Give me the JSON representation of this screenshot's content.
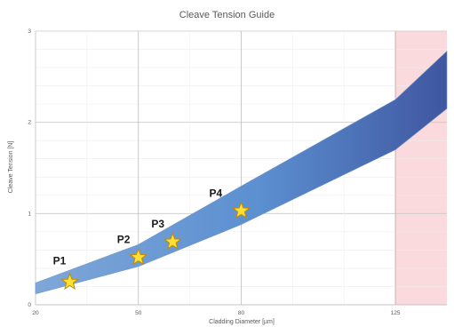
{
  "chart_data": {
    "type": "area",
    "title": "Cleave Tension Guide",
    "xlabel": "Cladding Diameter [µm]",
    "ylabel": "Cleave Tension [N]",
    "x_tick_labels": [
      "20",
      "50",
      "80",
      "125"
    ],
    "x_tick_values": [
      20,
      50,
      80,
      125
    ],
    "xlim": [
      20,
      140
    ],
    "ylim": [
      0,
      3
    ],
    "y_ticks": [
      0,
      1,
      2,
      3
    ],
    "y_tick_labels": [
      "0",
      "1",
      "2",
      "3"
    ],
    "grid": true,
    "band": {
      "x": [
        20,
        50,
        80,
        125,
        140
      ],
      "lower": [
        0.12,
        0.42,
        0.88,
        1.7,
        2.15
      ],
      "upper": [
        0.24,
        0.66,
        1.3,
        2.25,
        2.78
      ]
    },
    "band_colors": [
      "#7fa7d9",
      "#5b8fd0",
      "#3f56a0"
    ],
    "shaded_region": {
      "x_from": 125,
      "x_to": 140,
      "color": "#fadadd",
      "edge_color": "#e8a0a8"
    },
    "points": [
      {
        "label": "P1",
        "x": 30,
        "y": 0.25
      },
      {
        "label": "P2",
        "x": 50,
        "y": 0.52
      },
      {
        "label": "P3",
        "x": 60,
        "y": 0.69
      },
      {
        "label": "P4",
        "x": 80,
        "y": 1.03
      }
    ],
    "marker": {
      "shape": "star",
      "fill": "#ffe033",
      "stroke": "#c08a00"
    }
  }
}
